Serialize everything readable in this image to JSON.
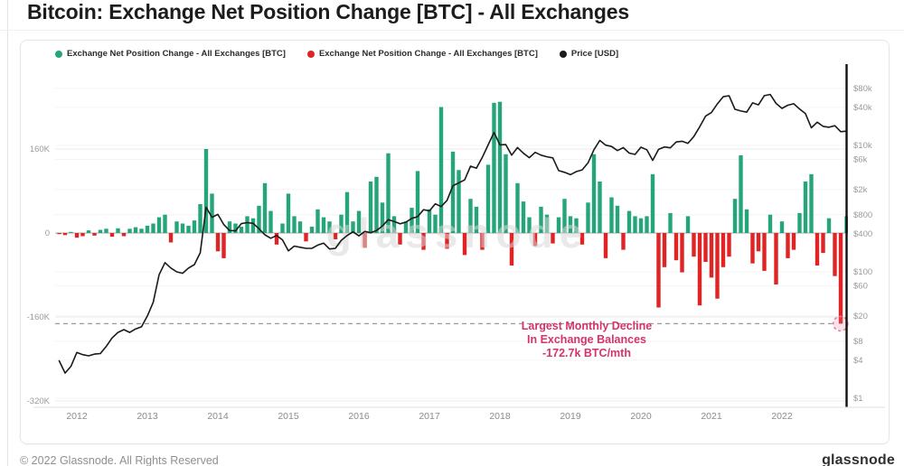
{
  "page": {
    "title": "Bitcoin: Exchange Net Position Change [BTC] - All Exchanges",
    "footer_left": "© 2022 Glassnode. All Rights Reserved",
    "footer_right": "glassnode",
    "watermark": "glassnode"
  },
  "legend": [
    {
      "label": "Exchange Net Position Change - All Exchanges [BTC]",
      "color": "#27a57a"
    },
    {
      "label": "Exchange Net Position Change - All Exchanges [BTC]",
      "color": "#e02424"
    },
    {
      "label": "Price [USD]",
      "color": "#1a1a1a"
    }
  ],
  "annotation": {
    "line1": "Largest Monthly Decline",
    "line2": "In Exchange Balances",
    "line3": "-172.7k BTC/mth",
    "color": "#d6336c"
  },
  "chart_data": {
    "type": "bar+line",
    "title": "Bitcoin: Exchange Net Position Change [BTC] - All Exchanges",
    "x_start": 2011.75,
    "x_step_months": 1,
    "bar_series": {
      "name": "Exchange Net Position Change - All Exchanges [BTC]",
      "unit": "thousand BTC per month",
      "positive_color": "#27a57a",
      "negative_color": "#e02424",
      "values_kbtc": [
        -2,
        -4,
        2,
        -9,
        -6,
        5,
        -5,
        6,
        8,
        -7,
        9,
        -6,
        8,
        11,
        8,
        14,
        18,
        30,
        35,
        -18,
        22,
        18,
        14,
        24,
        55,
        160,
        75,
        -35,
        -48,
        22,
        18,
        12,
        32,
        28,
        52,
        95,
        42,
        -22,
        18,
        75,
        32,
        22,
        -16,
        12,
        45,
        30,
        22,
        -12,
        35,
        78,
        22,
        42,
        -28,
        98,
        107,
        58,
        152,
        32,
        -22,
        22,
        48,
        118,
        -32,
        45,
        35,
        240,
        -30,
        155,
        120,
        -42,
        65,
        50,
        -32,
        130,
        248,
        250,
        150,
        -62,
        95,
        60,
        30,
        -25,
        50,
        35,
        -20,
        30,
        65,
        32,
        28,
        -22,
        58,
        150,
        98,
        -48,
        68,
        52,
        -32,
        42,
        32,
        28,
        32,
        112,
        -142,
        -65,
        38,
        -52,
        -75,
        32,
        -45,
        -138,
        -55,
        -85,
        -125,
        -65,
        -45,
        65,
        148,
        45,
        -58,
        -35,
        -72,
        35,
        -98,
        22,
        -48,
        -32,
        38,
        98,
        112,
        -62,
        -38,
        28,
        -82,
        -172.7,
        32
      ]
    },
    "price_series": {
      "name": "Price [USD]",
      "color": "#1a1a1a",
      "scale": "log",
      "values_usd": [
        3.9,
        2.5,
        3.2,
        5.3,
        4.9,
        4.7,
        5.0,
        5.1,
        6.6,
        9.0,
        11.0,
        12.2,
        11.0,
        12.5,
        13.5,
        20,
        33,
        90,
        140,
        115,
        100,
        95,
        115,
        130,
        200,
        1050,
        730,
        810,
        560,
        450,
        445,
        580,
        600,
        585,
        480,
        385,
        340,
        375,
        320,
        215,
        255,
        245,
        235,
        235,
        265,
        285,
        230,
        235,
        315,
        375,
        430,
        370,
        435,
        415,
        450,
        530,
        670,
        625,
        575,
        610,
        700,
        745,
        960,
        920,
        1190,
        1080,
        1350,
        2300,
        2550,
        2850,
        4700,
        4350,
        6450,
        10200,
        16000,
        10200,
        10300,
        7000,
        9250,
        7500,
        6400,
        7750,
        7000,
        6600,
        6350,
        4000,
        3750,
        3450,
        3850,
        4100,
        5300,
        8550,
        12000,
        10100,
        9600,
        8300,
        9200,
        7550,
        7200,
        9350,
        8550,
        5800,
        8650,
        9450,
        9150,
        11350,
        11650,
        10800,
        13800,
        19700,
        29000,
        33100,
        45200,
        58800,
        61000,
        37300,
        35000,
        33500,
        47100,
        43800,
        61300,
        64000,
        46200,
        38500,
        43200,
        45500,
        37700,
        31800,
        19000,
        23300,
        20000,
        19400,
        20500,
        16500,
        16800
      ]
    },
    "annotation_marker": {
      "x": 2022.83,
      "value_kbtc": -172.7,
      "label": "-172.7k BTC/mth",
      "circle_color": "#e87da0",
      "dash_line_color": "#9a9a9a"
    },
    "left_axis": {
      "title": "",
      "unit": "BTC",
      "tick_labels": [
        "160K",
        "0",
        "-160K",
        "-320K"
      ],
      "tick_values_kbtc": [
        160,
        0,
        -160,
        -320
      ]
    },
    "right_axis": {
      "title": "",
      "unit": "USD",
      "scale": "log",
      "tick_labels": [
        "$80k",
        "$40k",
        "$10k",
        "$6k",
        "$2k",
        "$800",
        "$400",
        "$100",
        "$60",
        "$20",
        "$8",
        "$4",
        "$1"
      ],
      "tick_values_usd": [
        80000,
        40000,
        10000,
        6000,
        2000,
        800,
        400,
        100,
        60,
        20,
        8,
        4,
        1
      ]
    },
    "x_axis": {
      "tick_labels": [
        "2012",
        "2013",
        "2014",
        "2015",
        "2016",
        "2017",
        "2018",
        "2019",
        "2020",
        "2021",
        "2022"
      ],
      "tick_values": [
        2012,
        2013,
        2014,
        2015,
        2016,
        2017,
        2018,
        2019,
        2020,
        2021,
        2022
      ],
      "range": [
        2011.7,
        2022.95
      ]
    },
    "grid": true,
    "legend_position": "top-left"
  }
}
